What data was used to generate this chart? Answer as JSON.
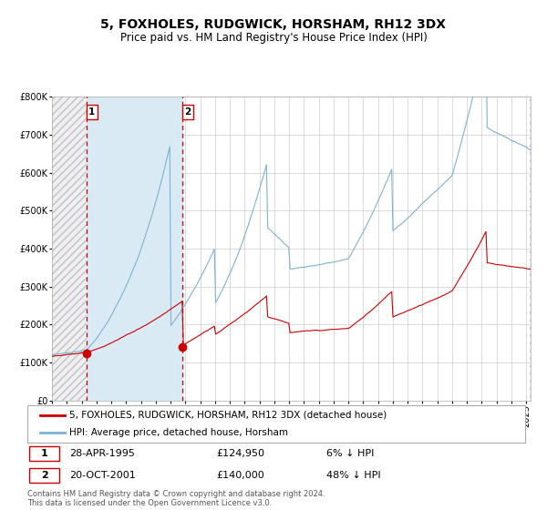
{
  "title": "5, FOXHOLES, RUDGWICK, HORSHAM, RH12 3DX",
  "subtitle": "Price paid vs. HM Land Registry's House Price Index (HPI)",
  "ylim": [
    0,
    800000
  ],
  "yticks": [
    0,
    100000,
    200000,
    300000,
    400000,
    500000,
    600000,
    700000,
    800000
  ],
  "ytick_labels": [
    "£0",
    "£100K",
    "£200K",
    "£300K",
    "£400K",
    "£500K",
    "£600K",
    "£700K",
    "£800K"
  ],
  "hpi_color": "#7ab3d4",
  "price_color": "#cc0000",
  "purchase1_date_num": 1995.32,
  "purchase1_price": 124950,
  "purchase2_date_num": 2001.8,
  "purchase2_price": 140000,
  "legend_label_red": "5, FOXHOLES, RUDGWICK, HORSHAM, RH12 3DX (detached house)",
  "legend_label_blue": "HPI: Average price, detached house, Horsham",
  "footnote": "Contains HM Land Registry data © Crown copyright and database right 2024.\nThis data is licensed under the Open Government Licence v3.0.",
  "shaded_region_color": "#daeaf5",
  "grid_color": "#cccccc",
  "title_fontsize": 10,
  "subtitle_fontsize": 8.5,
  "tick_fontsize": 7,
  "legend_fontsize": 7.5,
  "annotation_fontsize": 8
}
